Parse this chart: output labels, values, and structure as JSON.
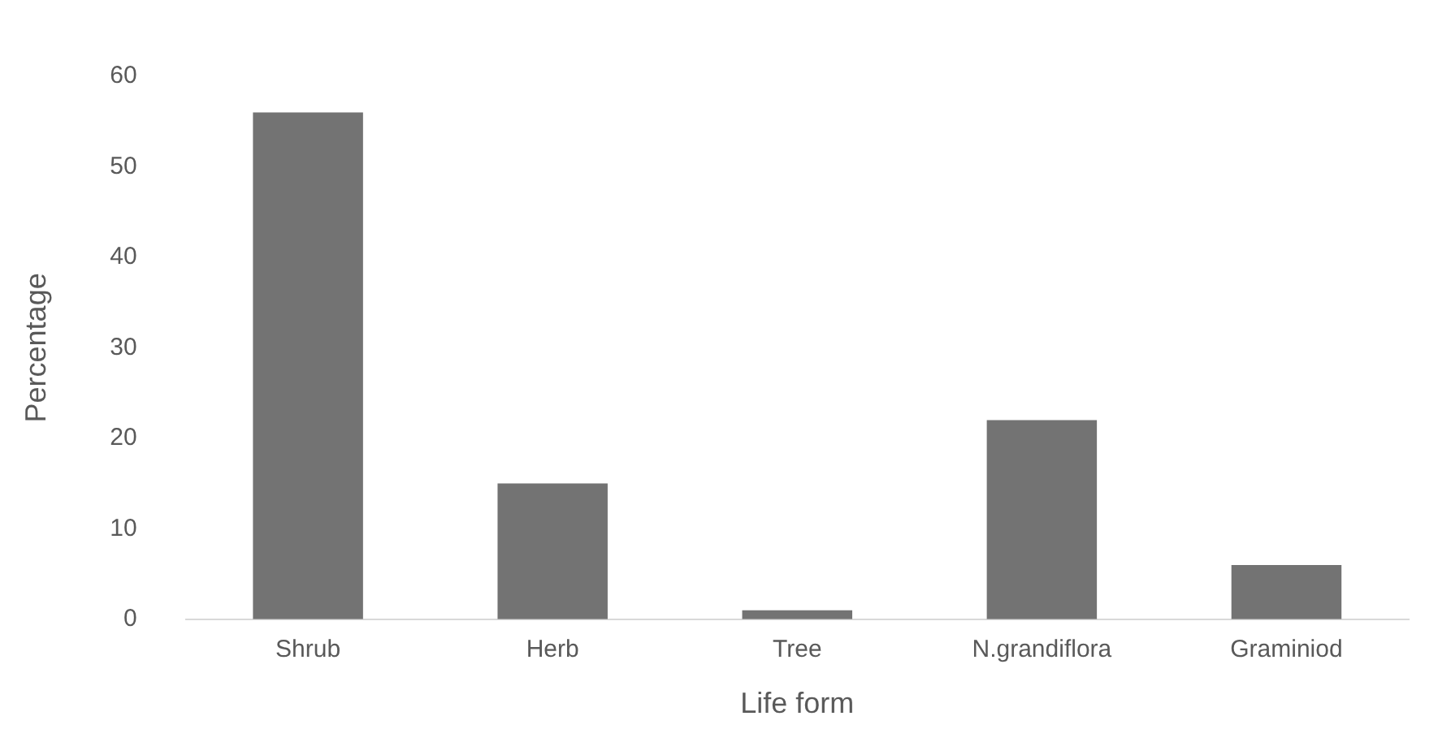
{
  "chart_data": {
    "type": "bar",
    "xlabel": "Life form",
    "ylabel": "Percentage",
    "categories": [
      "Shrub",
      "Herb",
      "Tree",
      "N.grandiflora",
      "Graminiod"
    ],
    "values": [
      56,
      15,
      1,
      22,
      6
    ],
    "color": "#737373",
    "ylim": [
      0,
      60
    ],
    "yticks": [
      0,
      10,
      20,
      30,
      40,
      50,
      60
    ],
    "grid": false,
    "legend": false
  }
}
